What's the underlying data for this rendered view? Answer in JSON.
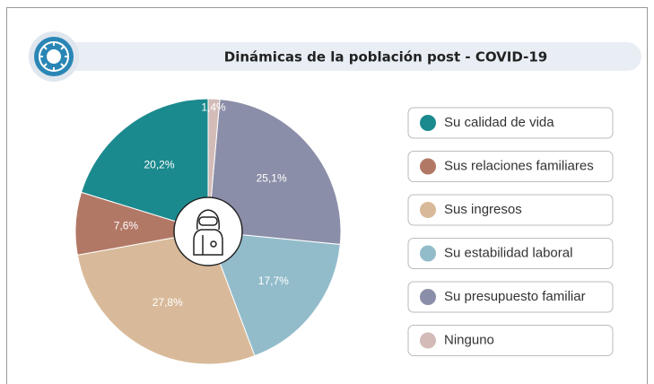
{
  "chart_data": {
    "type": "pie",
    "title": "Dinámicas de la población post - COVID-19",
    "categories": [
      "Su calidad de vida",
      "Sus relaciones familiares",
      "Sus ingresos",
      "Su estabilidad laboral",
      "Su presupuesto familiar",
      "Ninguno"
    ],
    "values": [
      20.2,
      7.6,
      27.8,
      17.7,
      25.1,
      1.4
    ],
    "value_labels": [
      "20,2%",
      "7,6%",
      "27,8%",
      "17,7%",
      "25,1%",
      "1,4%"
    ],
    "colors": [
      "#1b8a8e",
      "#b27866",
      "#d8ba9a",
      "#93bccb",
      "#8b8ea8",
      "#d3bcb8"
    ]
  }
}
